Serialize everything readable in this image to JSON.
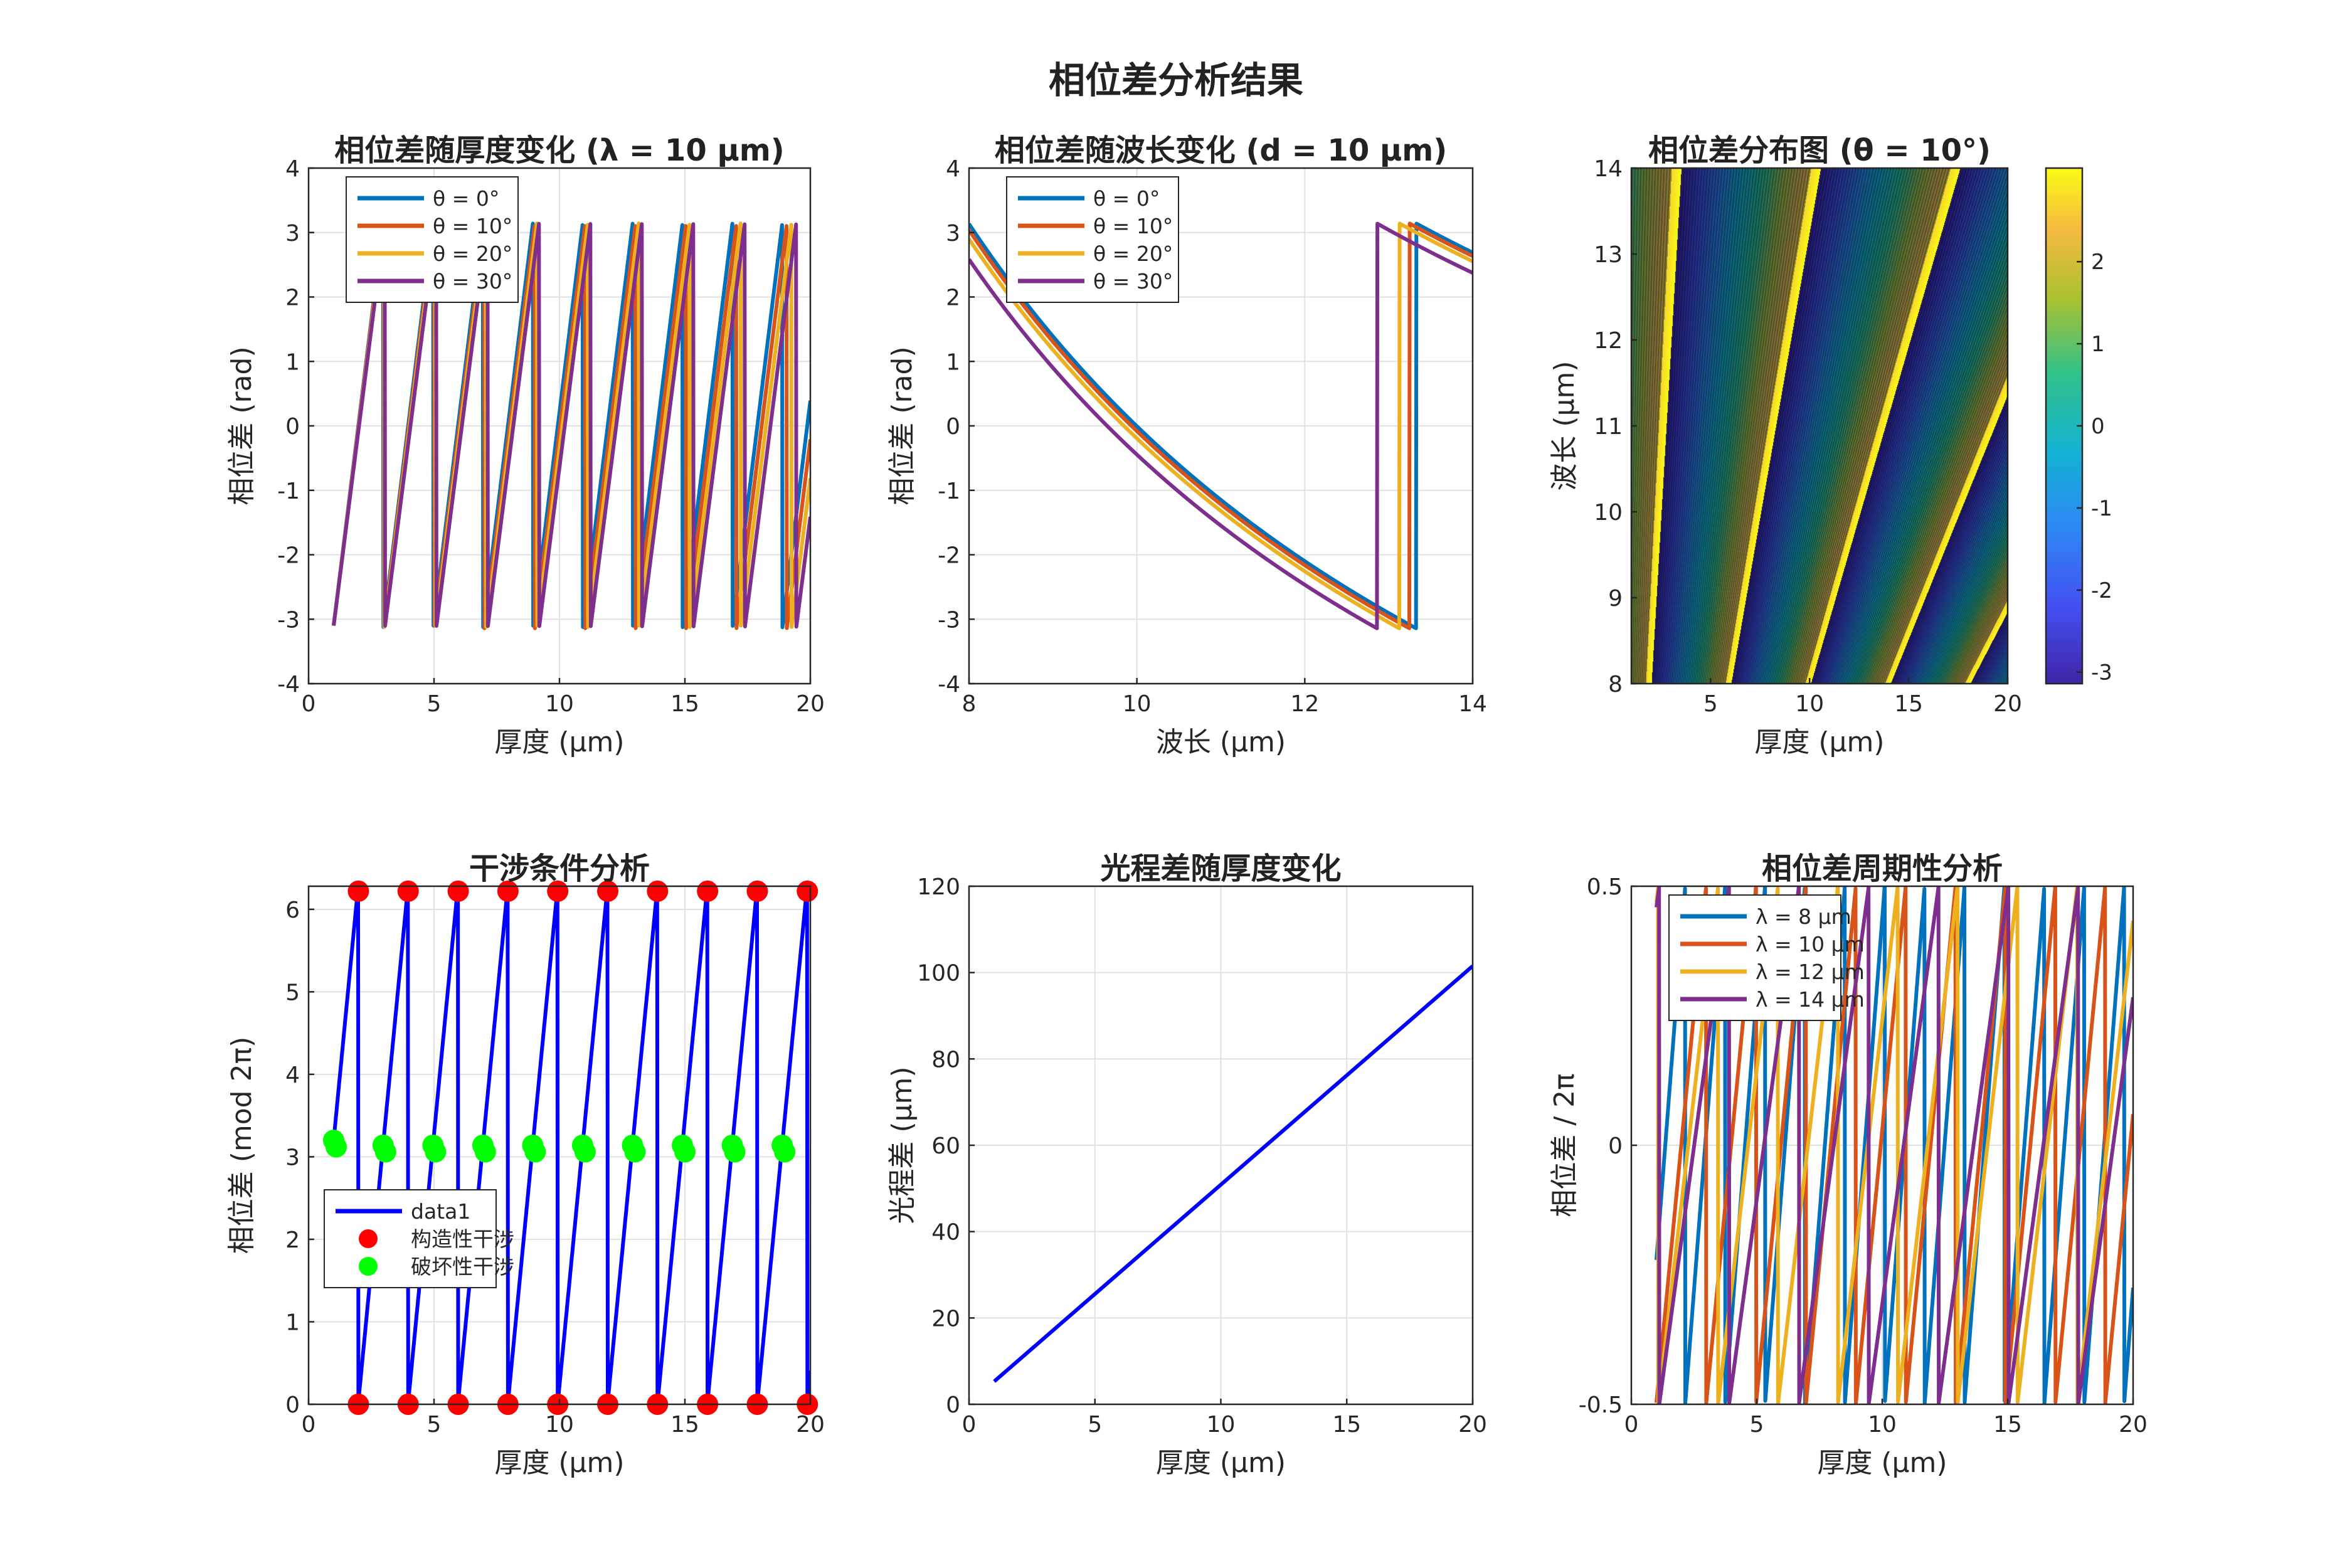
{
  "figure": {
    "title": "相位差分析结果"
  },
  "chart_data": [
    {
      "id": "p1",
      "type": "line",
      "title": "相位差随厚度变化 (λ = 10 μm)",
      "xlabel": "厚度 (μm)",
      "ylabel": "相位差 (rad)",
      "xlim": [
        0,
        20
      ],
      "ylim": [
        -4,
        4
      ],
      "xticks": [
        0,
        5,
        10,
        15,
        20
      ],
      "yticks": [
        -4,
        -3,
        -2,
        -1,
        0,
        1,
        2,
        3,
        4
      ],
      "grid": true,
      "legend": "top-left",
      "wrapped_phase": {
        "x_start": 1,
        "x_end": 20,
        "phase_at_x0": -3.1,
        "slope_base": 3.16,
        "angle_factor": 0.025
      },
      "series": [
        {
          "name": "θ = 0°",
          "color": "#0072BD",
          "angle_deg": 0
        },
        {
          "name": "θ = 10°",
          "color": "#D95319",
          "angle_deg": 10
        },
        {
          "name": "θ = 20°",
          "color": "#EDB120",
          "angle_deg": 20
        },
        {
          "name": "θ = 30°",
          "color": "#7E2F8E",
          "angle_deg": 30
        }
      ]
    },
    {
      "id": "p2",
      "type": "line",
      "title": "相位差随波长变化 (d = 10 μm)",
      "xlabel": "波长 (μm)",
      "ylabel": "相位差 (rad)",
      "xlim": [
        8,
        14
      ],
      "ylim": [
        -4,
        4
      ],
      "xticks": [
        8,
        10,
        12,
        14
      ],
      "yticks": [
        -4,
        -3,
        -2,
        -1,
        0,
        1,
        2,
        3,
        4
      ],
      "grid": true,
      "legend": "top-left",
      "inverse_wavelength": {
        "x_start": 8,
        "x_end": 14,
        "K": 125.6
      },
      "series": [
        {
          "name": "θ = 0°",
          "color": "#0072BD",
          "scale": 1.0
        },
        {
          "name": "θ = 10°",
          "color": "#D95319",
          "scale": 0.994
        },
        {
          "name": "θ = 20°",
          "color": "#EDB120",
          "scale": 0.985
        },
        {
          "name": "θ = 30°",
          "color": "#7E2F8E",
          "scale": 0.965
        }
      ]
    },
    {
      "id": "p3",
      "type": "heatmap",
      "title": "相位差分布图 (θ = 10°)",
      "xlabel": "厚度 (μm)",
      "ylabel": "波长 (μm)",
      "xlim": [
        1,
        20
      ],
      "ylim": [
        8,
        14
      ],
      "xticks": [
        5,
        10,
        15,
        20
      ],
      "yticks": [
        8,
        9,
        10,
        11,
        12,
        13,
        14
      ],
      "colorbar": {
        "ticks": [
          -3,
          -2,
          -1,
          0,
          1,
          2
        ],
        "clim": [
          -3.14,
          3.14
        ]
      },
      "fringe_model": {
        "K": 125.6,
        "offset": 0
      }
    },
    {
      "id": "p4",
      "type": "line",
      "title": "干涉条件分析",
      "xlabel": "厚度 (μm)",
      "ylabel": "相位差 (mod 2π)",
      "xlim": [
        0,
        20
      ],
      "ylim": [
        0,
        6.28
      ],
      "xticks": [
        0,
        5,
        10,
        15,
        20
      ],
      "yticks": [
        0,
        1,
        2,
        3,
        4,
        5,
        6
      ],
      "grid": true,
      "legend": "bottom-left",
      "line": {
        "name": "data1",
        "color": "#0000FF",
        "x_start": 1,
        "x_end": 20,
        "phase_at_x0": 3.2,
        "slope": 3.16
      },
      "constructive": {
        "name": "构造性干涉",
        "color": "#FF0000"
      },
      "destructive": {
        "name": "破坏性干涉",
        "color": "#00FF00"
      }
    },
    {
      "id": "p5",
      "type": "line",
      "title": "光程差随厚度变化",
      "xlabel": "厚度 (μm)",
      "ylabel": "光程差 (μm)",
      "xlim": [
        0,
        20
      ],
      "ylim": [
        0,
        120
      ],
      "xticks": [
        0,
        5,
        10,
        15,
        20
      ],
      "yticks": [
        0,
        20,
        40,
        60,
        80,
        100,
        120
      ],
      "grid": true,
      "series": [
        {
          "color": "#0000FF",
          "x": [
            1,
            20
          ],
          "y": [
            5.3,
            101.5
          ]
        }
      ]
    },
    {
      "id": "p6",
      "type": "line",
      "title": "相位差周期性分析",
      "xlabel": "厚度 (μm)",
      "ylabel": "相位差 / 2π",
      "xlim": [
        0,
        20
      ],
      "ylim": [
        -0.5,
        0.5
      ],
      "xticks": [
        0,
        5,
        10,
        15,
        20
      ],
      "yticks": [
        -0.5,
        0,
        0.5
      ],
      "grid": true,
      "legend": "top-left",
      "wrapped_cycles": {
        "x_start": 1,
        "x_end": 20,
        "K": 5.03
      },
      "series": [
        {
          "name": "λ = 8 μm",
          "color": "#0072BD",
          "wavelength": 8,
          "offset": 0.15
        },
        {
          "name": "λ = 10 μm",
          "color": "#D95319",
          "wavelength": 10,
          "offset": 0.0
        },
        {
          "name": "λ = 12 μm",
          "color": "#EDB120",
          "wavelength": 12,
          "offset": 0.05
        },
        {
          "name": "λ = 14 μm",
          "color": "#7E2F8E",
          "wavelength": 14,
          "offset": 0.1
        }
      ]
    }
  ]
}
